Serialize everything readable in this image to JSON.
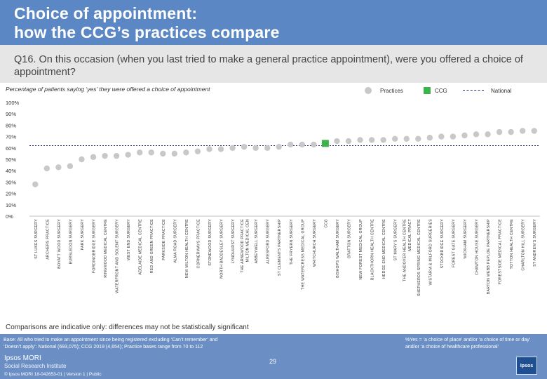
{
  "header": {
    "title_line1": "Choice of appointment:",
    "title_line2": "how the CCG’s practices compare"
  },
  "question": {
    "text": "Q16. On this occasion (when you last tried to make a general practice appointment), were you offered a choice of appointment?"
  },
  "subtitle": "Percentage of patients saying ‘yes’ they were offered a choice of appointment",
  "legend": {
    "practices": "Practices",
    "ccg": "CCG",
    "national": "National"
  },
  "colors": {
    "practice": "#c8c8c8",
    "ccg": "#3cb44b",
    "national": "#1e2a6b",
    "gridline": "#bfbfbf",
    "header": "#5b87c5",
    "footer": "#6b8fc5"
  },
  "chart_data": {
    "type": "scatter",
    "title": "Percentage of patients saying ‘yes’ they were offered a choice of appointment",
    "xlabel": "",
    "ylabel": "",
    "ylim": [
      0,
      100
    ],
    "yticks": [
      "0%",
      "10%",
      "20%",
      "30%",
      "40%",
      "50%",
      "60%",
      "70%",
      "80%",
      "90%",
      "100%"
    ],
    "national_value": 62,
    "categories": [
      "ST LUKES SURGERY",
      "ARCHERS PRACTICE",
      "BOYATT WOOD SURGERY",
      "BURSLEDON SURGERY",
      "PARK SURGERY",
      "FORDINGBRIDGE SURGERY",
      "RINGWOOD MEDICAL CENTRE",
      "WATERFRONT AND SOLENT SURGERY",
      "WEST END SURGERY",
      "ADELAIDE MEDICAL CENTRE",
      "RED AND GREEN PRACTICE",
      "PARKSIDE PRACTICE",
      "ALMA ROAD SURGERY",
      "NEW MILTON HEALTH CENTRE",
      "CORNERWAYS PRACTICE",
      "STONEWOOD SURGERY",
      "NORTH BADDESLEY SURGERY",
      "LYNDHURST SURGERY",
      "THE ARNEWOOD PRACTICE MILTON MEDICAL CEN",
      "ABBEYWELL SURGERY",
      "ALRESFORD SURGERY",
      "ST CLEMENTS PARTNERSHIP",
      "THE FRYERN SURGERY",
      "THE WATERCRESS MEDICAL GROUP",
      "WHITCHURCH SURGERY",
      "CCG",
      "BISHOPS WALTHAM SURGERY",
      "GRATTON SURGERY",
      "NEW FOREST MEDICAL GROUP",
      "BLACKTHORN HEALTH CENTRE",
      "HEDGE END MEDICAL CENTRE",
      "ST MARY'S SURGERY",
      "THE ANDOVER HEALTH CENTRE MEDICAL PRACT",
      "SHEPHERDS SPRING MEDICAL CENTRE",
      "WISTARIA & MILFORD SURGERIES",
      "STOCKBRIDGE SURGERY",
      "FOREST GATE SURGERY",
      "WICKHAM SURGERY",
      "CHAWTON HOUSE SURGERY",
      "BARTON WEBB PEPLOE PARTNERSHIP",
      "FORESTSIDE MEDICAL PRACTICE",
      "TOTTON HEALTH CENTRE",
      "CHARLTON HILL SURGERY",
      "ST ANDREW'S SURGERY"
    ],
    "series": [
      {
        "name": "Practices",
        "values": [
          28,
          42,
          43,
          44,
          50,
          52,
          53,
          53,
          54,
          56,
          56,
          55,
          55,
          56,
          57,
          59,
          59,
          60,
          61,
          60,
          60,
          61,
          63,
          63,
          63,
          64,
          66,
          66,
          67,
          67,
          67,
          68,
          68,
          68,
          69,
          70,
          70,
          71,
          72,
          72,
          74,
          74,
          75,
          75
        ]
      }
    ]
  },
  "note": "Comparisons are indicative only: differences may not be statistically significant",
  "footer": {
    "base": "Base: All who tried to make an appointment since being registered excluding ‘Can’t remember’ and ‘Doesn’t apply’: National (693,075); CCG 2019 (4,654); Practice bases range from 70 to 112",
    "yes_def": "%Yes = ‘a choice of place’ and/or ‘a choice of time or day’ and/or ‘a choice of healthcare professional’",
    "brand1": "Ipsos MORI",
    "brand2": "Social Research Institute",
    "page": "29",
    "copyright": "© Ipsos MORI     18-042653-01 | Version 1 | Public",
    "logo": "Ipsos"
  }
}
